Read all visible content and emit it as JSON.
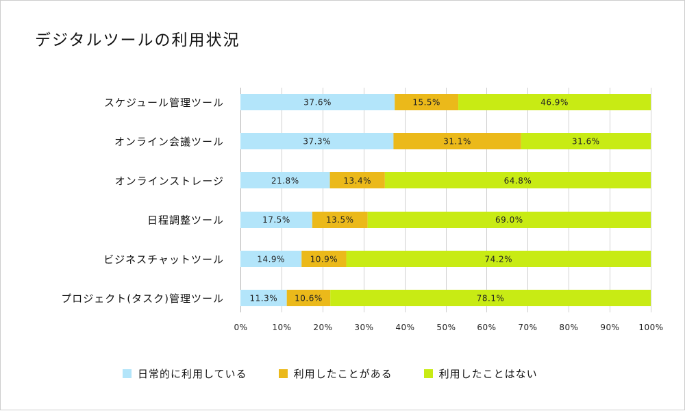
{
  "chart_data": {
    "type": "bar",
    "orientation": "horizontal",
    "stacked": true,
    "percent_stacked": true,
    "title": "デジタルツールの利用状況",
    "xlabel": "",
    "ylabel": "",
    "xlim": [
      0,
      100
    ],
    "grid": true,
    "legend_position": "bottom",
    "categories": [
      "スケジュール管理ツール",
      "オンライン会議ツール",
      "オンラインストレージ",
      "日程調整ツール",
      "ビジネスチャットツール",
      "プロジェクト(タスク)管理ツール"
    ],
    "x_ticks": [
      "0%",
      "10%",
      "20%",
      "30%",
      "40%",
      "50%",
      "60%",
      "70%",
      "80%",
      "90%",
      "100%"
    ],
    "series": [
      {
        "name": "日常的に利用している",
        "color": "#b3e5fa",
        "values": [
          37.6,
          37.3,
          21.8,
          17.5,
          14.9,
          11.3
        ],
        "labels": [
          "37.6%",
          "37.3%",
          "21.8%",
          "17.5%",
          "14.9%",
          "11.3%"
        ]
      },
      {
        "name": "利用したことがある",
        "color": "#ebb91a",
        "values": [
          15.5,
          31.1,
          13.4,
          13.5,
          10.9,
          10.6
        ],
        "labels": [
          "15.5%",
          "31.1%",
          "13.4%",
          "13.5%",
          "10.9%",
          "10.6%"
        ]
      },
      {
        "name": "利用したことはない",
        "color": "#c8eb14",
        "values": [
          46.9,
          31.6,
          64.8,
          69.0,
          74.2,
          78.1
        ],
        "labels": [
          "46.9%",
          "31.6%",
          "64.8%",
          "69.0%",
          "74.2%",
          "78.1%"
        ]
      }
    ]
  }
}
